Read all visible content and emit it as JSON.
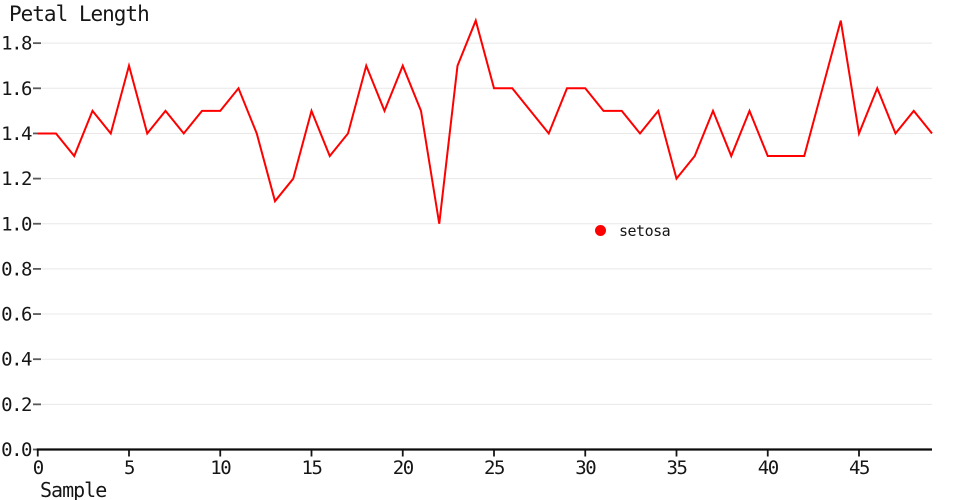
{
  "title": "Petal Length",
  "x_axis_label": "Sample",
  "colors": {
    "series_red": "#ff0000",
    "gridline": "#e8e8e8",
    "axis": "#0c0c0c",
    "tick": "#595959",
    "label_text": "#161616",
    "background": "#ffffff"
  },
  "legend": {
    "position": "inside-center-right",
    "items": [
      {
        "label": "setosa",
        "color": "#ff0000",
        "marker": "circle"
      }
    ]
  },
  "chart_data": {
    "type": "line",
    "title": "Petal Length",
    "xlabel": "Sample",
    "ylabel": "Petal Length",
    "grid": "horizontal",
    "legend_position": "inside-center-right",
    "xlim": [
      0,
      49
    ],
    "ylim": [
      0.0,
      1.9
    ],
    "xticks": [
      0,
      5,
      10,
      15,
      20,
      25,
      30,
      35,
      40,
      45
    ],
    "yticks": [
      0.0,
      0.2,
      0.4,
      0.6,
      0.8,
      1.0,
      1.2,
      1.4,
      1.6,
      1.8
    ],
    "x": [
      0,
      1,
      2,
      3,
      4,
      5,
      6,
      7,
      8,
      9,
      10,
      11,
      12,
      13,
      14,
      15,
      16,
      17,
      18,
      19,
      20,
      21,
      22,
      23,
      24,
      25,
      26,
      27,
      28,
      29,
      30,
      31,
      32,
      33,
      34,
      35,
      36,
      37,
      38,
      39,
      40,
      41,
      42,
      43,
      44,
      45,
      46,
      47,
      48,
      49
    ],
    "series": [
      {
        "name": "setosa",
        "color": "#ff0000",
        "values": [
          1.4,
          1.4,
          1.3,
          1.5,
          1.4,
          1.7,
          1.4,
          1.5,
          1.4,
          1.5,
          1.5,
          1.6,
          1.4,
          1.1,
          1.2,
          1.5,
          1.3,
          1.4,
          1.7,
          1.5,
          1.7,
          1.5,
          1.0,
          1.7,
          1.9,
          1.6,
          1.6,
          1.5,
          1.4,
          1.6,
          1.6,
          1.5,
          1.5,
          1.4,
          1.5,
          1.2,
          1.3,
          1.5,
          1.3,
          1.5,
          1.3,
          1.3,
          1.3,
          1.6,
          1.9,
          1.4,
          1.6,
          1.4,
          1.5,
          1.4
        ]
      }
    ]
  }
}
